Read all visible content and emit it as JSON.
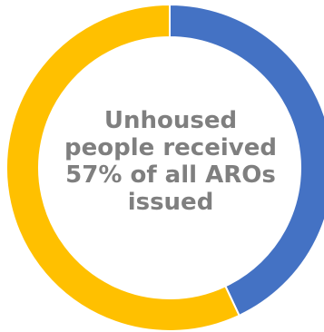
{
  "chart_data": {
    "type": "pie",
    "donut": true,
    "categories": [
      "",
      ""
    ],
    "values": [
      43,
      57
    ],
    "colors": [
      "#4472c4",
      "#ffc000"
    ],
    "title": "",
    "legend": "none",
    "center_text": {
      "line1": "Unhoused",
      "line2": "people received",
      "line3": "57% of all AROs",
      "line4": "issued"
    }
  }
}
